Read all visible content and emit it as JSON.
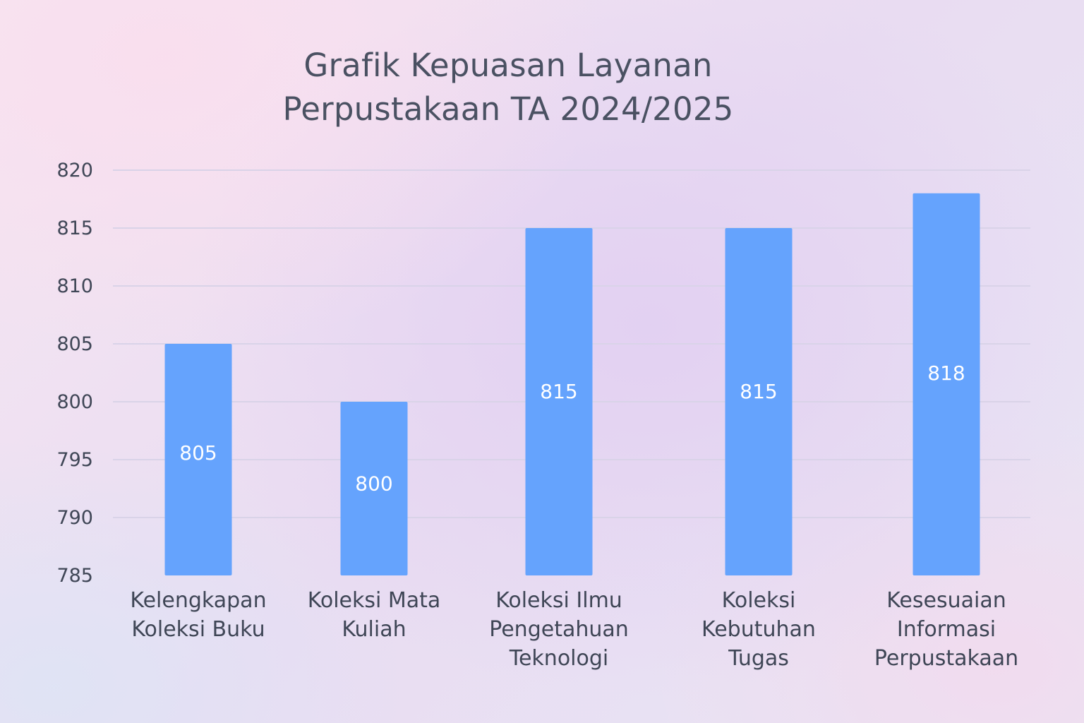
{
  "chart_data": {
    "type": "bar",
    "title": [
      "Grafik Kepuasan Layanan",
      "Perpustakaan TA 2024/2025"
    ],
    "xlabel": "",
    "ylabel": "",
    "categories": [
      [
        "Kelengkapan",
        "Koleksi Buku"
      ],
      [
        "Koleksi Mata",
        "Kuliah"
      ],
      [
        "Koleksi Ilmu",
        "Pengetahuan",
        "Teknologi"
      ],
      [
        "Koleksi",
        "Kebutuhan",
        "Tugas"
      ],
      [
        "Kesesuaian",
        "Informasi",
        "Perpustakaan"
      ]
    ],
    "values": [
      805,
      800,
      815,
      815,
      818
    ],
    "data_labels": [
      "805",
      "800",
      "815",
      "815",
      "818"
    ],
    "ylim": [
      785,
      820
    ],
    "yticks": [
      785,
      790,
      795,
      800,
      805,
      810,
      815,
      820
    ],
    "grid": true,
    "legend": "none",
    "colors": {
      "bar": "#65a3fd",
      "grid": "#d9d3e8",
      "text": "#3f4656",
      "label": "#ffffff"
    }
  }
}
